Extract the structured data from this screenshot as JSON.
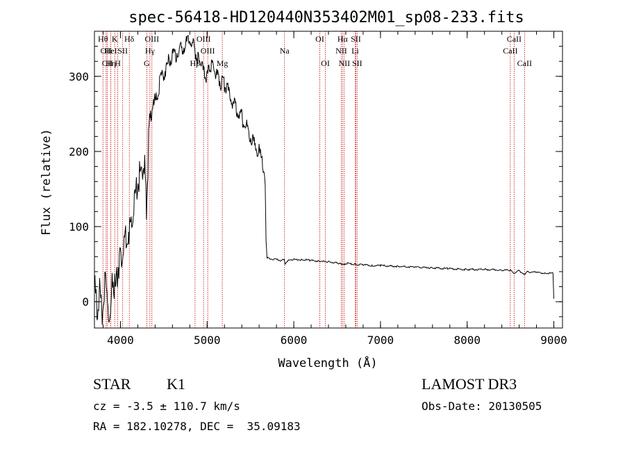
{
  "chart_data": {
    "type": "line",
    "title": "spec-56418-HD120440N353402M01_sp08-233.fits",
    "xlabel": "Wavelength (Å)",
    "ylabel": "Flux (relative)",
    "xlim": [
      3700,
      9100
    ],
    "ylim": [
      -35,
      360
    ],
    "xticks": [
      4000,
      5000,
      6000,
      7000,
      8000,
      9000
    ],
    "xtick_labels": [
      "4000",
      "5000",
      "6000",
      "7000",
      "8000",
      "9000"
    ],
    "yticks": [
      0,
      100,
      200,
      300
    ],
    "ytick_labels": [
      "0",
      "100",
      "200",
      "300"
    ],
    "grid": false,
    "series": [
      {
        "name": "spectrum",
        "x": [
          3700,
          3730,
          3760,
          3790,
          3820,
          3850,
          3880,
          3910,
          3940,
          3970,
          4000,
          4030,
          4060,
          4100,
          4130,
          4160,
          4190,
          4220,
          4250,
          4280,
          4300,
          4330,
          4360,
          4400,
          4440,
          4480,
          4520,
          4560,
          4600,
          4640,
          4680,
          4720,
          4760,
          4800,
          4840,
          4870,
          4900,
          4930,
          4960,
          4990,
          5020,
          5050,
          5080,
          5110,
          5140,
          5170,
          5200,
          5240,
          5280,
          5320,
          5360,
          5400,
          5440,
          5480,
          5520,
          5560,
          5600,
          5640,
          5660,
          5670,
          5680,
          5690,
          5700,
          5750,
          5800,
          5850,
          5890,
          5900,
          5950,
          6000,
          6100,
          6200,
          6300,
          6400,
          6500,
          6560,
          6600,
          6700,
          6800,
          6900,
          7000,
          7200,
          7400,
          7600,
          7800,
          8000,
          8200,
          8400,
          8500,
          8540,
          8600,
          8660,
          8700,
          8800,
          8900,
          8990,
          9000
        ],
        "y": [
          20,
          -5,
          10,
          -20,
          25,
          5,
          -30,
          30,
          15,
          45,
          60,
          70,
          80,
          95,
          110,
          130,
          150,
          170,
          180,
          185,
          120,
          230,
          260,
          260,
          285,
          300,
          310,
          320,
          330,
          330,
          335,
          340,
          345,
          350,
          340,
          330,
          320,
          320,
          305,
          300,
          305,
          320,
          310,
          300,
          295,
          290,
          290,
          280,
          270,
          260,
          255,
          245,
          240,
          225,
          215,
          205,
          200,
          180,
          170,
          155,
          80,
          60,
          58,
          57,
          56,
          55,
          56,
          50,
          56,
          56,
          56,
          55,
          54,
          53,
          52,
          49,
          51,
          50,
          49,
          48,
          48,
          47,
          46,
          45,
          44,
          43,
          43,
          42,
          42,
          38,
          41,
          37,
          40,
          39,
          38,
          38,
          4
        ]
      }
    ],
    "lines": [
      {
        "x": 3798,
        "label": "Hθ",
        "row": 0
      },
      {
        "x": 3835,
        "label": "OII",
        "row": 1
      },
      {
        "x": 3850,
        "label": "CII",
        "row": 2
      },
      {
        "x": 3889,
        "label": "Hη",
        "row": 2
      },
      {
        "x": 3934,
        "label": "K",
        "row": 0
      },
      {
        "x": 3889,
        "label": "HeI",
        "row": 1
      },
      {
        "x": 3969,
        "label": "H",
        "row": 2
      },
      {
        "x": 4026,
        "label": "SII",
        "row": 1
      },
      {
        "x": 4102,
        "label": "Hδ",
        "row": 0
      },
      {
        "x": 4304,
        "label": "G",
        "row": 2
      },
      {
        "x": 4340,
        "label": "Hγ",
        "row": 1
      },
      {
        "x": 4363,
        "label": "OIII",
        "row": 0
      },
      {
        "x": 4861,
        "label": "Hβ",
        "row": 2
      },
      {
        "x": 4959,
        "label": "OIII",
        "row": 0
      },
      {
        "x": 5007,
        "label": "OIII",
        "row": 1
      },
      {
        "x": 5175,
        "label": "Mg",
        "row": 2
      },
      {
        "x": 5893,
        "label": "Na",
        "row": 1
      },
      {
        "x": 6300,
        "label": "OI",
        "row": 0
      },
      {
        "x": 6364,
        "label": "OI",
        "row": 2
      },
      {
        "x": 6548,
        "label": "NII",
        "row": 1
      },
      {
        "x": 6563,
        "label": "Hα",
        "row": 0
      },
      {
        "x": 6583,
        "label": "NII",
        "row": 2
      },
      {
        "x": 6708,
        "label": "Li",
        "row": 1
      },
      {
        "x": 6716,
        "label": "SII",
        "row": 0
      },
      {
        "x": 6731,
        "label": "SII",
        "row": 2
      },
      {
        "x": 8498,
        "label": "CaII",
        "row": 1
      },
      {
        "x": 8542,
        "label": "CaII",
        "row": 0
      },
      {
        "x": 8662,
        "label": "CaII",
        "row": 2
      }
    ]
  },
  "footer": {
    "object_class": "STAR",
    "subclass": "K1",
    "survey": "LAMOST DR3",
    "redshift": "cz = -3.5 ± 110.7 km/s",
    "obs_date": "Obs-Date: 20130505",
    "coords": "RA = 182.10278, DEC =  35.09183"
  },
  "colors": {
    "axes": "#000000",
    "spectrum": "#000000",
    "line_marker": "#c00000"
  }
}
